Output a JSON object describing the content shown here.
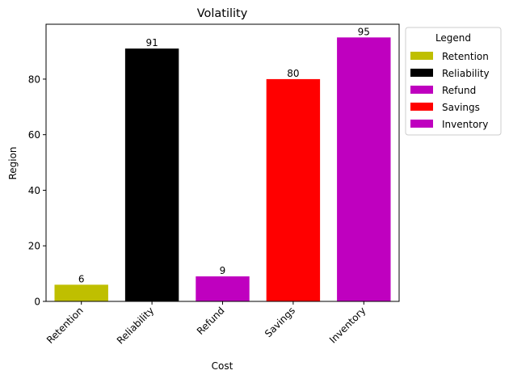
{
  "chart_data": {
    "type": "bar",
    "title": "Volatility",
    "xlabel": "Cost",
    "ylabel": "Region",
    "categories": [
      "Retention",
      "Reliability",
      "Refund",
      "Savings",
      "Inventory"
    ],
    "values": [
      6,
      91,
      9,
      80,
      95
    ],
    "colors": [
      "#bfbf00",
      "#000000",
      "#bf00bf",
      "#ff0000",
      "#bf00bf"
    ],
    "ylim": [
      0,
      99.75
    ],
    "yticks": [
      0,
      20,
      40,
      60,
      80
    ],
    "grid": false,
    "legend": {
      "title": "Legend",
      "placement": "outside-right-top",
      "entries": [
        "Retention",
        "Reliability",
        "Refund",
        "Savings",
        "Inventory"
      ]
    }
  }
}
